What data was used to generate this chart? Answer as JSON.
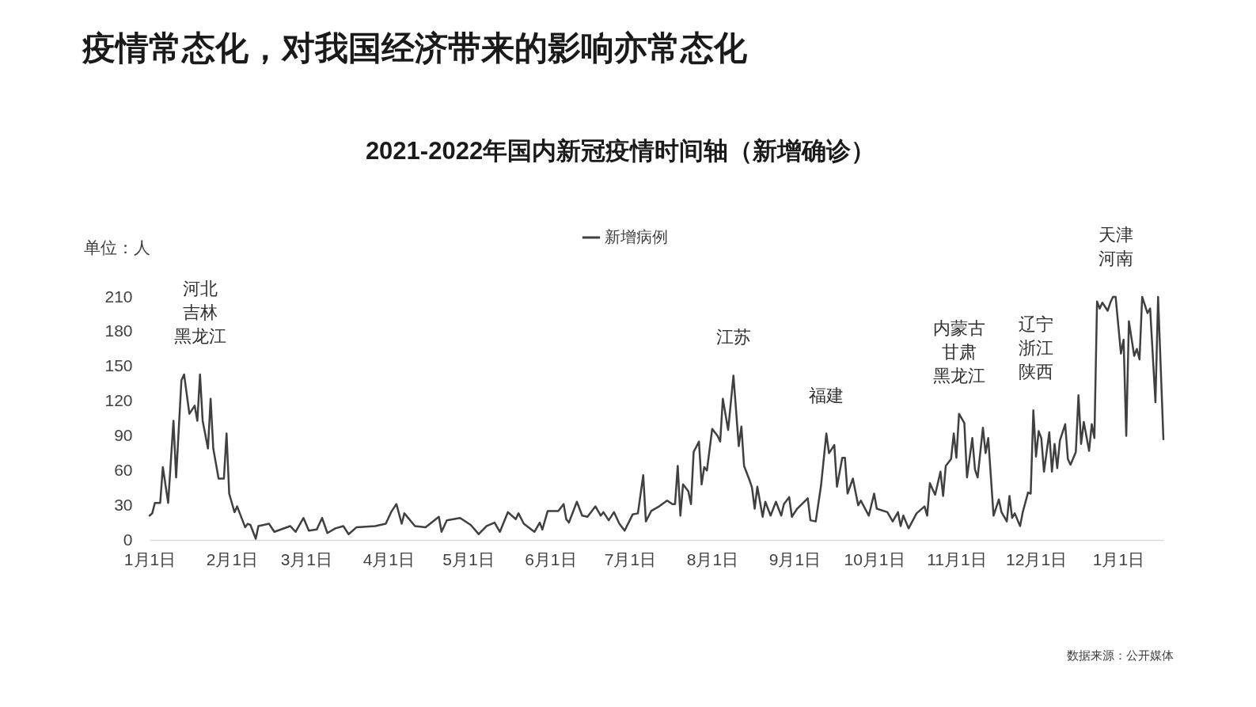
{
  "chart_data": {
    "type": "line",
    "title": "疫情常态化，对我国经济带来的影响亦常态化",
    "subtitle": "2021-2022年国内新冠疫情时间轴（新增确诊）",
    "ylabel": "单位：人",
    "legend": "top",
    "grid": false,
    "line_style": "solid",
    "xlim": [
      "2021-01-01",
      "2022-01-18"
    ],
    "xticks": [
      {
        "value": "2021-01-01",
        "label": "1月1日"
      },
      {
        "value": "2021-02-01",
        "label": "2月1日"
      },
      {
        "value": "2021-03-01",
        "label": "3月1日"
      },
      {
        "value": "2021-04-01",
        "label": "4月1日"
      },
      {
        "value": "2021-05-01",
        "label": "5月1日"
      },
      {
        "value": "2021-06-01",
        "label": "6月1日"
      },
      {
        "value": "2021-07-01",
        "label": "7月1日"
      },
      {
        "value": "2021-08-01",
        "label": "8月1日"
      },
      {
        "value": "2021-09-01",
        "label": "9月1日"
      },
      {
        "value": "2021-10-01",
        "label": "10月1日"
      },
      {
        "value": "2021-11-01",
        "label": "11月1日"
      },
      {
        "value": "2021-12-01",
        "label": "12月1日"
      },
      {
        "value": "2022-01-01",
        "label": "1月1日"
      }
    ],
    "ylim": [
      0,
      210
    ],
    "yticks": [
      0,
      30,
      60,
      90,
      120,
      150,
      180,
      210
    ],
    "x": [
      "2021-01-01",
      "2021-01-02",
      "2021-01-03",
      "2021-01-05",
      "2021-01-06",
      "2021-01-08",
      "2021-01-10",
      "2021-01-11",
      "2021-01-13",
      "2021-01-14",
      "2021-01-16",
      "2021-01-18",
      "2021-01-19",
      "2021-01-20",
      "2021-01-21",
      "2021-01-23",
      "2021-01-24",
      "2021-01-25",
      "2021-01-27",
      "2021-01-29",
      "2021-01-30",
      "2021-01-31",
      "2021-02-02",
      "2021-02-03",
      "2021-02-06",
      "2021-02-07",
      "2021-02-08",
      "2021-02-10",
      "2021-02-11",
      "2021-02-15",
      "2021-02-17",
      "2021-02-23",
      "2021-02-25",
      "2021-02-28",
      "2021-03-02",
      "2021-03-05",
      "2021-03-07",
      "2021-03-09",
      "2021-03-12",
      "2021-03-15",
      "2021-03-17",
      "2021-03-20",
      "2021-03-27",
      "2021-03-31",
      "2021-04-02",
      "2021-04-04",
      "2021-04-06",
      "2021-04-07",
      "2021-04-11",
      "2021-04-15",
      "2021-04-20",
      "2021-04-21",
      "2021-04-23",
      "2021-04-28",
      "2021-05-02",
      "2021-05-05",
      "2021-05-08",
      "2021-05-11",
      "2021-05-13",
      "2021-05-16",
      "2021-05-19",
      "2021-05-20",
      "2021-05-22",
      "2021-05-26",
      "2021-05-28",
      "2021-05-29",
      "2021-05-31",
      "2021-06-04",
      "2021-06-06",
      "2021-06-07",
      "2021-06-08",
      "2021-06-11",
      "2021-06-13",
      "2021-06-15",
      "2021-06-18",
      "2021-06-20",
      "2021-06-21",
      "2021-06-23",
      "2021-06-25",
      "2021-06-27",
      "2021-06-29",
      "2021-07-02",
      "2021-07-04",
      "2021-07-06",
      "2021-07-07",
      "2021-07-09",
      "2021-07-12",
      "2021-07-15",
      "2021-07-17",
      "2021-07-18",
      "2021-07-19",
      "2021-07-20",
      "2021-07-21",
      "2021-07-23",
      "2021-07-24",
      "2021-07-25",
      "2021-07-27",
      "2021-07-28",
      "2021-07-29",
      "2021-07-30",
      "2021-08-01",
      "2021-08-03",
      "2021-08-04",
      "2021-08-05",
      "2021-08-07",
      "2021-08-09",
      "2021-08-11",
      "2021-08-12",
      "2021-08-13",
      "2021-08-15",
      "2021-08-16",
      "2021-08-17",
      "2021-08-18",
      "2021-08-20",
      "2021-08-21",
      "2021-08-23",
      "2021-08-25",
      "2021-08-27",
      "2021-08-28",
      "2021-08-30",
      "2021-08-31",
      "2021-09-02",
      "2021-09-06",
      "2021-09-07",
      "2021-09-09",
      "2021-09-11",
      "2021-09-13",
      "2021-09-14",
      "2021-09-16",
      "2021-09-17",
      "2021-09-19",
      "2021-09-20",
      "2021-09-21",
      "2021-09-23",
      "2021-09-25",
      "2021-09-26",
      "2021-09-29",
      "2021-10-01",
      "2021-10-02",
      "2021-10-06",
      "2021-10-08",
      "2021-10-10",
      "2021-10-11",
      "2021-10-12",
      "2021-10-14",
      "2021-10-17",
      "2021-10-20",
      "2021-10-21",
      "2021-10-22",
      "2021-10-24",
      "2021-10-26",
      "2021-10-27",
      "2021-10-28",
      "2021-10-30",
      "2021-10-31",
      "2021-11-01",
      "2021-11-02",
      "2021-11-04",
      "2021-11-05",
      "2021-11-07",
      "2021-11-08",
      "2021-11-09",
      "2021-11-11",
      "2021-11-12",
      "2021-11-13",
      "2021-11-15",
      "2021-11-17",
      "2021-11-18",
      "2021-11-20",
      "2021-11-21",
      "2021-11-22",
      "2021-11-23",
      "2021-11-25",
      "2021-11-26",
      "2021-11-28",
      "2021-11-29",
      "2021-11-30",
      "2021-12-01",
      "2021-12-02",
      "2021-12-03",
      "2021-12-04",
      "2021-12-06",
      "2021-12-07",
      "2021-12-08",
      "2021-12-09",
      "2021-12-10",
      "2021-12-12",
      "2021-12-13",
      "2021-12-14",
      "2021-12-16",
      "2021-12-17",
      "2021-12-18",
      "2021-12-19",
      "2021-12-21",
      "2021-12-22",
      "2021-12-23",
      "2021-12-24",
      "2021-12-25",
      "2021-12-26",
      "2021-12-28",
      "2021-12-29",
      "2021-12-30",
      "2021-12-31",
      "2022-01-02",
      "2022-01-03",
      "2022-01-04",
      "2022-01-05",
      "2022-01-07",
      "2022-01-08",
      "2022-01-09",
      "2022-01-10",
      "2022-01-12",
      "2022-01-13",
      "2022-01-15",
      "2022-01-16",
      "2022-01-18"
    ],
    "series": [
      {
        "name": "新增病例",
        "color": "#404040",
        "values": [
          21,
          23,
          32,
          32,
          63,
          32,
          103,
          54,
          138,
          143,
          109,
          116,
          103,
          143,
          103,
          79,
          122,
          79,
          53,
          53,
          92,
          40,
          24,
          29,
          11,
          14,
          13,
          1,
          12,
          14,
          7,
          12,
          7,
          19,
          8,
          9,
          19,
          6,
          10,
          12,
          5,
          11,
          12,
          14,
          24,
          31,
          14,
          23,
          12,
          11,
          20,
          7,
          17,
          19,
          13,
          5,
          12,
          15,
          7,
          24,
          18,
          23,
          14,
          7,
          15,
          9,
          25,
          25,
          31,
          18,
          15,
          33,
          21,
          20,
          29,
          21,
          24,
          17,
          24,
          14,
          8,
          22,
          23,
          56,
          16,
          25,
          29,
          34,
          31,
          31,
          64,
          21,
          48,
          42,
          31,
          76,
          85,
          48,
          63,
          60,
          96,
          90,
          85,
          122,
          95,
          142,
          81,
          98,
          64,
          52,
          45,
          27,
          46,
          20,
          33,
          21,
          33,
          21,
          31,
          37,
          20,
          27,
          36,
          17,
          16,
          47,
          92,
          75,
          82,
          46,
          71,
          71,
          40,
          53,
          30,
          34,
          21,
          40,
          27,
          24,
          16,
          24,
          12,
          21,
          10,
          23,
          29,
          21,
          49,
          39,
          59,
          38,
          64,
          70,
          92,
          71,
          109,
          101,
          54,
          88,
          61,
          54,
          97,
          75,
          88,
          21,
          35,
          24,
          16,
          38,
          19,
          23,
          12,
          24,
          41,
          40,
          112,
          72,
          94,
          88,
          59,
          93,
          59,
          83,
          62,
          86,
          100,
          70,
          65,
          76,
          125,
          83,
          102,
          77,
          100,
          88,
          206,
          200,
          205,
          198,
          205,
          210,
          210,
          161,
          173,
          90,
          189,
          159,
          165,
          156,
          210,
          196,
          200,
          119,
          210,
          87
        ]
      }
    ],
    "annotations": [
      {
        "text": "河北吉林黑龙江",
        "x": "2021-01-20",
        "y": 143
      },
      {
        "text": "江苏",
        "x": "2021-08-09",
        "y": 142
      },
      {
        "text": "福建",
        "x": "2021-09-13",
        "y": 92
      },
      {
        "text": "内蒙古甘肃黑龙江",
        "x": "2021-11-02",
        "y": 109
      },
      {
        "text": "辽宁浙江陕西",
        "x": "2021-12-01",
        "y": 112
      },
      {
        "text": "天津河南",
        "x": "2021-12-31",
        "y": 210
      },
      "数据来源：公开媒体"
    ]
  }
}
